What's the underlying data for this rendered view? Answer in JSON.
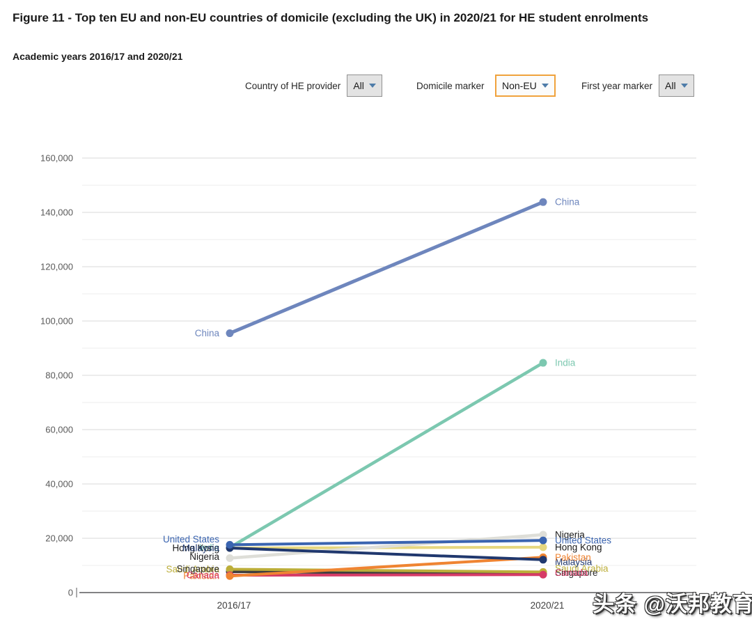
{
  "header": {
    "title": "Figure 11 - Top ten EU and non-EU countries of domicile (excluding the UK) in 2020/21 for HE student enrolments",
    "subtitle": "Academic years 2016/17 and 2020/21"
  },
  "filters": [
    {
      "label": "Country of HE provider",
      "value": "All",
      "highlighted": false
    },
    {
      "label": "Domicile marker",
      "value": "Non-EU",
      "highlighted": true
    },
    {
      "label": "First year marker",
      "value": "All",
      "highlighted": false
    }
  ],
  "chart_data": {
    "type": "line",
    "categories": [
      "2016/17",
      "2020/21"
    ],
    "series": [
      {
        "name": "China",
        "color": "#6e86bd",
        "label_color": "#6e86bd",
        "values": [
          95500,
          143800
        ],
        "width": 5,
        "dy": [
          0,
          0
        ]
      },
      {
        "name": "India",
        "color": "#7cc8b0",
        "label_color": "#7cc8b0",
        "values": [
          16600,
          84600
        ],
        "width": 4.5,
        "dy": [
          0,
          0
        ]
      },
      {
        "name": "Nigeria",
        "color": "#deded8",
        "label_color": "#1a1a1a",
        "values": [
          12700,
          21300
        ],
        "width": 4.5,
        "dy": [
          -2,
          0
        ]
      },
      {
        "name": "United States",
        "color": "#3a64b0",
        "label_color": "#3a64b0",
        "values": [
          17600,
          19200
        ],
        "width": 4,
        "dy": [
          -8,
          0
        ]
      },
      {
        "name": "Hong Kong",
        "color": "#e6d77f",
        "label_color": "#1a1a1a",
        "values": [
          16400,
          16700
        ],
        "width": 4,
        "dy": [
          0,
          0
        ]
      },
      {
        "name": "Pakistan",
        "color": "#ef8432",
        "label_color": "#ef8432",
        "values": [
          6100,
          13000
        ],
        "width": 4,
        "dy": [
          0,
          0
        ]
      },
      {
        "name": "Malaysia",
        "color": "#20386e",
        "label_color": "#20386e",
        "values": [
          16400,
          12100
        ],
        "width": 4,
        "dy": [
          0,
          3
        ]
      },
      {
        "name": "Saudi Arabia",
        "color": "#bcae39",
        "label_color": "#bcae39",
        "values": [
          8600,
          7600
        ],
        "width": 4,
        "dy": [
          0,
          -5
        ]
      },
      {
        "name": "Singapore",
        "color": "#3f3f3f",
        "label_color": "#2b2b2b",
        "values": [
          7700,
          6800
        ],
        "width": 4,
        "dy": [
          -4,
          -2
        ]
      },
      {
        "name": "Canada",
        "color": "#d63b66",
        "label_color": "#d63b66",
        "values": [
          6400,
          6600
        ],
        "width": 4,
        "dy": [
          0,
          -3
        ]
      }
    ],
    "line_order": [
      "Singapore",
      "Saudi Arabia",
      "Canada",
      "Pakistan",
      "India",
      "Hong Kong",
      "Nigeria",
      "Malaysia",
      "United States",
      "China"
    ],
    "label_order": [
      "Saudi Arabia",
      "Singapore",
      "India",
      "Hong Kong",
      "Malaysia",
      "Pakistan",
      "Canada",
      "Nigeria",
      "United States",
      "China"
    ],
    "ylim": [
      0,
      160000
    ],
    "y_major_step": 20000,
    "y_minor_step": 10000,
    "grid": true,
    "legend": "inline-labels-both-ends"
  },
  "colors": {
    "grid_major": "#d8d8d8",
    "grid_minor": "#ececec",
    "axis_line": "#58595b",
    "tick_label": "#595959",
    "x_label": "#404040",
    "accent_border": "#f0a23c"
  },
  "watermark": {
    "text": "头条 @沃邦教育"
  }
}
